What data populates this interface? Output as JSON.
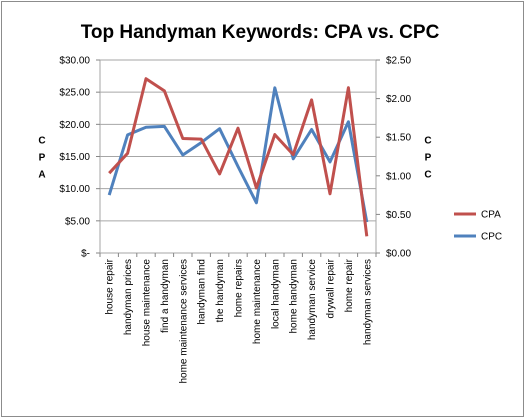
{
  "chart_data": {
    "type": "line",
    "title": "Top Handyman Keywords: CPA vs. CPC",
    "ylabel": "CPA",
    "y2label": "CPC",
    "categories": [
      "house repair",
      "handyman prices",
      "house maintenance",
      "find a handyman",
      "home maintenance services",
      "handyman find",
      "the handyman",
      "home repairs",
      "home maintenance",
      "local handyman",
      "home handyman",
      "handyman service",
      "drywall repair",
      "home repair",
      "handyman services"
    ],
    "series": [
      {
        "name": "CPA",
        "axis": "left",
        "color": "#c0504d",
        "values": [
          12.4,
          15.5,
          27.1,
          25.2,
          17.8,
          17.7,
          12.3,
          19.4,
          10.1,
          18.4,
          15.3,
          23.8,
          9.2,
          25.7,
          2.6
        ]
      },
      {
        "name": "CPC",
        "axis": "right",
        "color": "#4f81bd",
        "values": [
          0.75,
          1.53,
          1.63,
          1.64,
          1.27,
          1.43,
          1.61,
          1.12,
          0.65,
          2.14,
          1.22,
          1.6,
          1.18,
          1.7,
          0.4
        ]
      }
    ],
    "ylim": [
      0,
      30
    ],
    "y2lim": [
      0,
      2.5
    ],
    "yticks": [
      "$-",
      "$5.00",
      "$10.00",
      "$15.00",
      "$20.00",
      "$25.00",
      "$30.00"
    ],
    "y2ticks": [
      "$0.00",
      "$0.50",
      "$1.00",
      "$1.50",
      "$2.00",
      "$2.50"
    ],
    "grid": true,
    "legend_position": "right"
  }
}
